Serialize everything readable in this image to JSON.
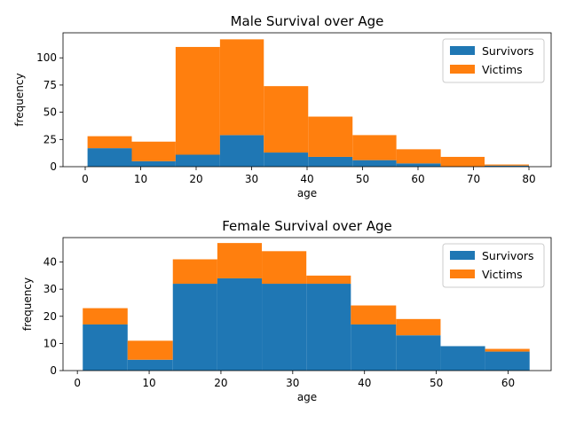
{
  "chart_data": [
    {
      "type": "bar",
      "stacked": true,
      "title": "Male Survival over Age",
      "xlabel": "age",
      "ylabel": "frequency",
      "xlim": [
        -4,
        84
      ],
      "ylim": [
        0,
        123
      ],
      "xticks": [
        0,
        10,
        20,
        30,
        40,
        50,
        60,
        70,
        80
      ],
      "yticks": [
        0,
        25,
        50,
        75,
        100
      ],
      "bin_edges": [
        0.42,
        8.4,
        16.3,
        24.3,
        32.2,
        40.2,
        48.2,
        56.1,
        64.1,
        72.0,
        80.0
      ],
      "series": [
        {
          "name": "Survivors",
          "color": "#1f77b4",
          "values": [
            17,
            5,
            11,
            29,
            13,
            9,
            6,
            3,
            0,
            1
          ]
        },
        {
          "name": "Victims",
          "color": "#ff7f0e",
          "values": [
            11,
            18,
            99,
            88,
            61,
            37,
            23,
            13,
            9,
            1
          ]
        }
      ],
      "legend": "top-right",
      "grid": false
    },
    {
      "type": "bar",
      "stacked": true,
      "title": "Female Survival over Age",
      "xlabel": "age",
      "ylabel": "frequency",
      "xlim": [
        -2,
        66
      ],
      "ylim": [
        0,
        49
      ],
      "xticks": [
        0,
        10,
        20,
        30,
        40,
        50,
        60
      ],
      "yticks": [
        0,
        10,
        20,
        30,
        40
      ],
      "bin_edges": [
        0.75,
        7.0,
        13.3,
        19.5,
        25.7,
        31.9,
        38.1,
        44.4,
        50.6,
        56.8,
        63.0
      ],
      "series": [
        {
          "name": "Survivors",
          "color": "#1f77b4",
          "values": [
            17,
            4,
            32,
            34,
            32,
            32,
            17,
            13,
            9,
            7
          ]
        },
        {
          "name": "Victims",
          "color": "#ff7f0e",
          "values": [
            6,
            7,
            9,
            13,
            12,
            3,
            7,
            6,
            0,
            1
          ]
        }
      ],
      "legend": "top-right",
      "grid": false
    }
  ]
}
